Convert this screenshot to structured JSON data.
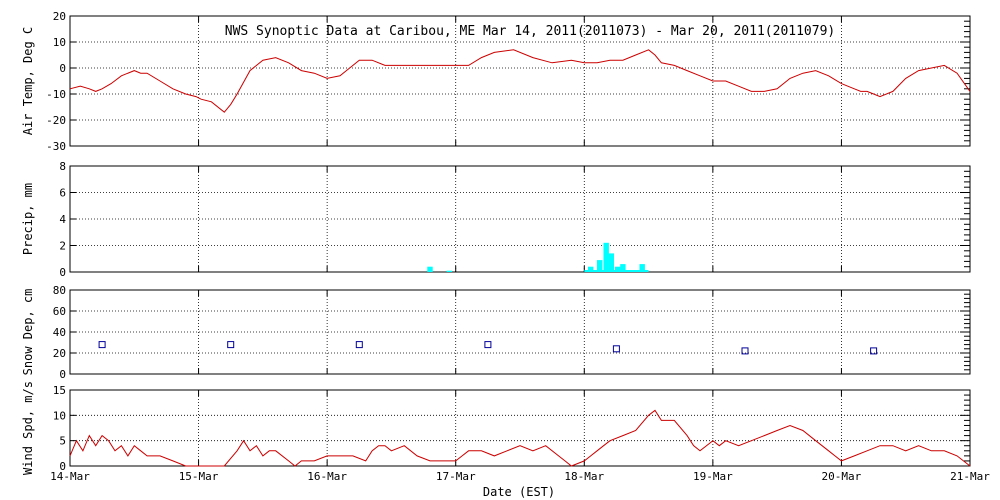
{
  "title": "NWS Synoptic Data at Caribou, ME   Mar 14, 2011(2011073) - Mar 20, 2011(2011079)",
  "x_axis": {
    "label": "Date (EST)",
    "ticks": [
      "14-Mar",
      "15-Mar",
      "16-Mar",
      "17-Mar",
      "18-Mar",
      "19-Mar",
      "20-Mar",
      "21-Mar"
    ]
  },
  "chart_data": [
    {
      "type": "line",
      "ylabel": "Air Temp, Deg C",
      "ylim": [
        -30,
        20
      ],
      "yticks": [
        -30,
        -20,
        -10,
        0,
        10,
        20
      ],
      "xlim": [
        0,
        7
      ],
      "color": "#cc0000",
      "x": [
        0.0,
        0.08,
        0.15,
        0.2,
        0.25,
        0.32,
        0.4,
        0.5,
        0.55,
        0.6,
        0.7,
        0.8,
        0.9,
        0.98,
        1.02,
        1.1,
        1.2,
        1.25,
        1.3,
        1.4,
        1.5,
        1.6,
        1.7,
        1.8,
        1.9,
        2.0,
        2.1,
        2.15,
        2.25,
        2.35,
        2.45,
        2.55,
        2.65,
        2.8,
        2.9,
        3.0,
        3.1,
        3.2,
        3.3,
        3.45,
        3.6,
        3.75,
        3.9,
        4.0,
        4.1,
        4.2,
        4.3,
        4.4,
        4.5,
        4.55,
        4.6,
        4.7,
        4.8,
        4.9,
        5.0,
        5.1,
        5.2,
        5.3,
        5.4,
        5.5,
        5.6,
        5.7,
        5.8,
        5.9,
        6.0,
        6.1,
        6.15,
        6.2,
        6.25,
        6.3,
        6.4,
        6.5,
        6.6,
        6.7,
        6.8,
        6.9,
        7.0
      ],
      "y": [
        -8,
        -7,
        -8,
        -9,
        -8,
        -6,
        -3,
        -1,
        -2,
        -2,
        -5,
        -8,
        -10,
        -11,
        -12,
        -13,
        -17,
        -14,
        -10,
        -1,
        3,
        4,
        2,
        -1,
        -2,
        -4,
        -3,
        -1,
        3,
        3,
        1,
        1,
        1,
        1,
        1,
        1,
        1,
        4,
        6,
        7,
        4,
        2,
        3,
        2,
        2,
        3,
        3,
        5,
        7,
        5,
        2,
        1,
        -1,
        -3,
        -5,
        -5,
        -7,
        -9,
        -9,
        -8,
        -4,
        -2,
        -1,
        -3,
        -6,
        -8,
        -9,
        -9,
        -10,
        -11,
        -9,
        -4,
        -1,
        0,
        1,
        -2,
        -9
      ]
    },
    {
      "type": "bar",
      "ylabel": "Precip, mm",
      "ylim": [
        0,
        8
      ],
      "yticks": [
        0,
        2,
        4,
        6,
        8
      ],
      "xlim": [
        0,
        7
      ],
      "color": "#00ffff",
      "x": [
        2.8,
        2.95,
        4.05,
        4.12,
        4.17,
        4.21,
        4.26,
        4.3,
        4.45
      ],
      "y": [
        0.4,
        0.1,
        0.4,
        0.9,
        2.2,
        1.4,
        0.4,
        0.6,
        0.6
      ]
    },
    {
      "type": "scatter",
      "ylabel": "Snow Dep, cm",
      "ylim": [
        0,
        80
      ],
      "yticks": [
        0,
        20,
        40,
        60,
        80
      ],
      "xlim": [
        0,
        7
      ],
      "color": "#000099",
      "x": [
        0.25,
        1.25,
        2.25,
        3.25,
        4.25,
        5.25,
        6.25
      ],
      "y": [
        28,
        28,
        28,
        28,
        24,
        22,
        22
      ]
    },
    {
      "type": "line",
      "ylabel": "Wind Spd, m/s",
      "ylim": [
        0,
        15
      ],
      "yticks": [
        0,
        5,
        10,
        15
      ],
      "xlim": [
        0,
        7
      ],
      "color": "#cc0000",
      "x": [
        0.0,
        0.05,
        0.1,
        0.15,
        0.2,
        0.25,
        0.3,
        0.35,
        0.4,
        0.45,
        0.5,
        0.55,
        0.6,
        0.7,
        0.8,
        0.9,
        0.95,
        1.0,
        1.05,
        1.1,
        1.2,
        1.3,
        1.35,
        1.4,
        1.45,
        1.5,
        1.55,
        1.6,
        1.7,
        1.75,
        1.8,
        1.85,
        1.9,
        2.0,
        2.1,
        2.2,
        2.3,
        2.35,
        2.4,
        2.45,
        2.5,
        2.6,
        2.7,
        2.8,
        2.9,
        3.0,
        3.05,
        3.1,
        3.2,
        3.3,
        3.4,
        3.5,
        3.6,
        3.7,
        3.8,
        3.85,
        3.9,
        4.0,
        4.05,
        4.1,
        4.15,
        4.2,
        4.3,
        4.4,
        4.5,
        4.55,
        4.6,
        4.7,
        4.8,
        4.85,
        4.9,
        5.0,
        5.05,
        5.1,
        5.2,
        5.3,
        5.4,
        5.5,
        5.6,
        5.7,
        5.8,
        5.9,
        5.95,
        6.0,
        6.1,
        6.2,
        6.3,
        6.4,
        6.5,
        6.6,
        6.7,
        6.8,
        6.9,
        7.0
      ],
      "y": [
        2,
        5,
        3,
        6,
        4,
        6,
        5,
        3,
        4,
        2,
        4,
        3,
        2,
        2,
        1,
        0,
        0,
        0,
        0,
        0,
        0,
        3,
        5,
        3,
        4,
        2,
        3,
        3,
        1,
        0,
        1,
        1,
        1,
        2,
        2,
        2,
        1,
        3,
        4,
        4,
        3,
        4,
        2,
        1,
        1,
        1,
        2,
        3,
        3,
        2,
        3,
        4,
        3,
        4,
        2,
        1,
        0,
        1,
        2,
        3,
        4,
        5,
        6,
        7,
        10,
        11,
        9,
        9,
        6,
        4,
        3,
        5,
        4,
        5,
        4,
        5,
        6,
        7,
        8,
        7,
        5,
        3,
        2,
        1,
        2,
        3,
        4,
        4,
        3,
        4,
        3,
        3,
        2,
        0
      ]
    }
  ]
}
